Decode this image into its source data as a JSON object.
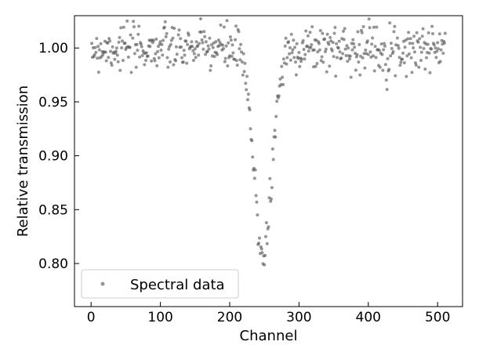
{
  "chart_data": {
    "type": "scatter",
    "title": "",
    "xlabel": "Channel",
    "ylabel": "Relative transmission",
    "xlim": [
      -24,
      536
    ],
    "ylim": [
      0.76,
      1.03
    ],
    "xticks": [
      0,
      100,
      200,
      300,
      400,
      500
    ],
    "xtick_labels": [
      "0",
      "100",
      "200",
      "300",
      "400",
      "500"
    ],
    "yticks": [
      0.8,
      0.85,
      0.9,
      0.95,
      1.0
    ],
    "ytick_labels": [
      "0.80",
      "0.85",
      "0.90",
      "0.95",
      "1.00"
    ],
    "grid": false,
    "legend": {
      "position": "bottom-left",
      "entries": [
        "Spectral data"
      ]
    },
    "colors": {
      "marker": "#555555",
      "axis": "#000000",
      "background": "#ffffff"
    },
    "series": [
      {
        "name": "Spectral data",
        "channels_range": [
          0,
          511
        ],
        "continuum_level": 1.0,
        "continuum_scatter": 0.011,
        "dip_center": 248,
        "dip_depth": 0.19,
        "dip_width": 13,
        "seed": 7
      }
    ]
  }
}
